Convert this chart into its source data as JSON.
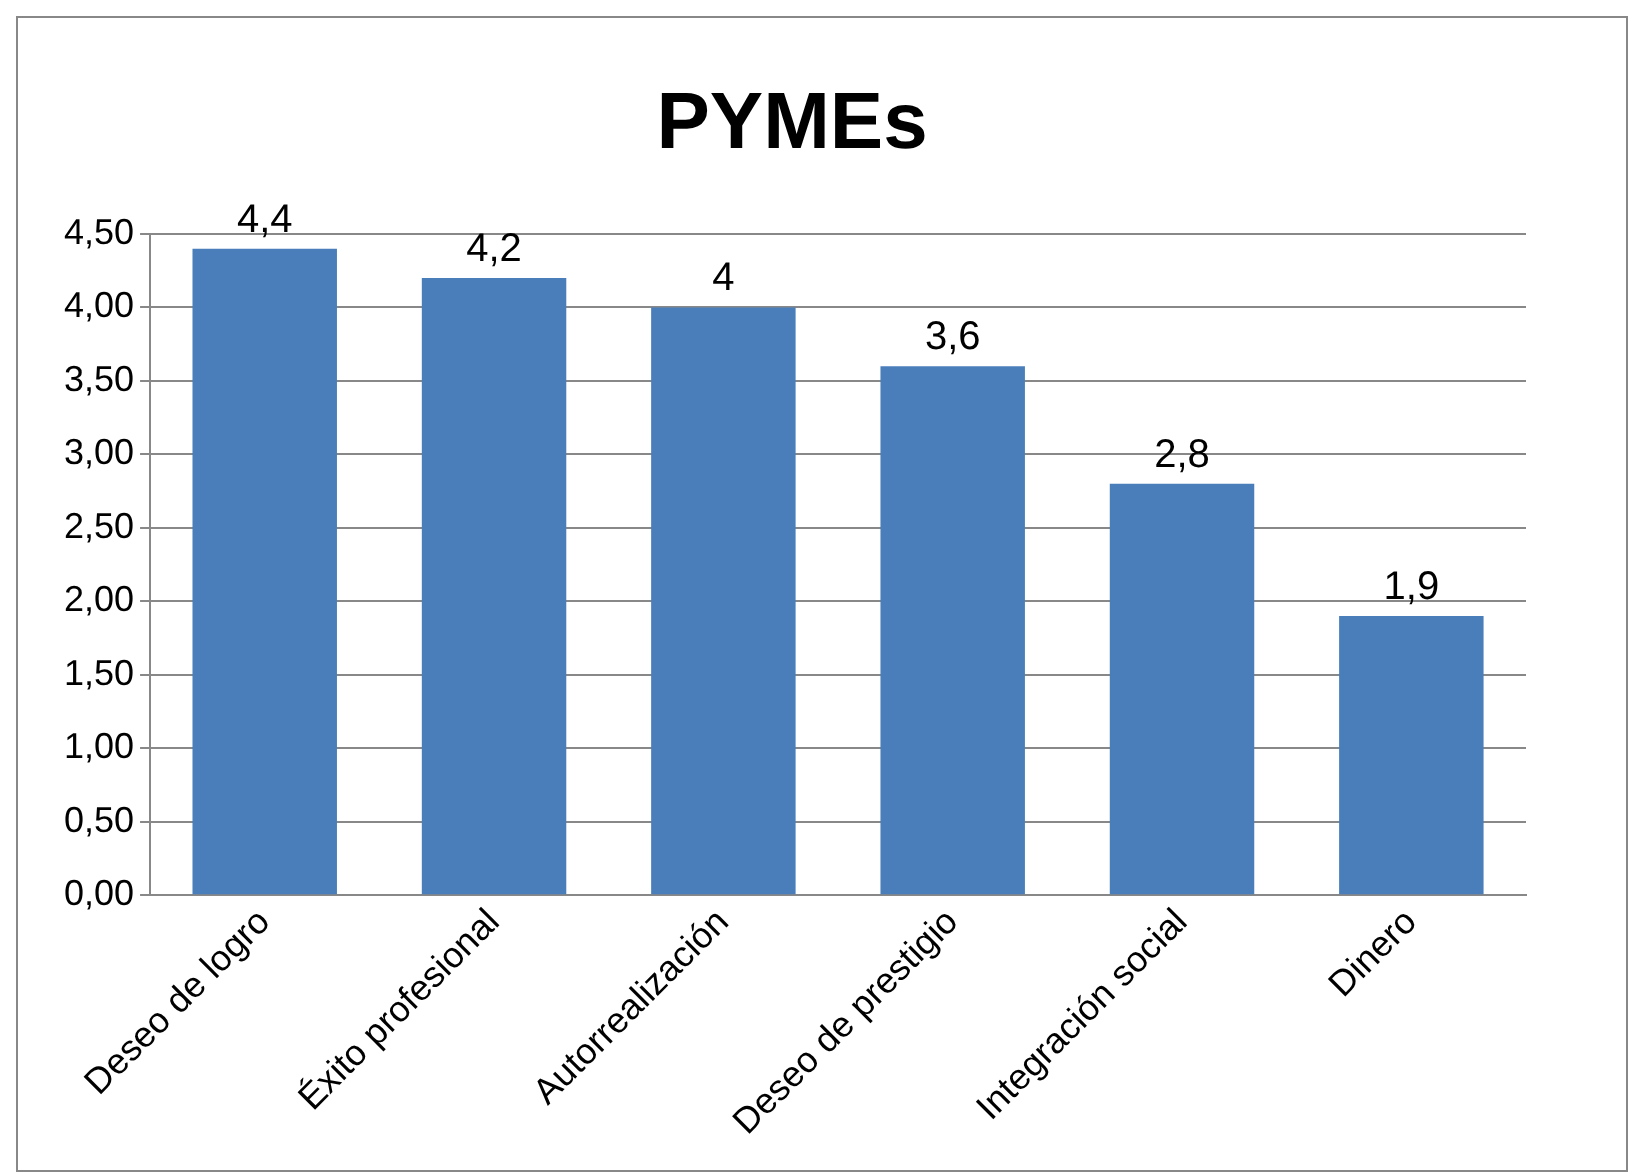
{
  "chart_data": {
    "type": "bar",
    "title": "PYMEs",
    "categories": [
      "Deseo de logro",
      "Éxito profesional",
      "Autorrealización",
      "Deseo de prestigio",
      "Integración social",
      "Dinero"
    ],
    "values": [
      4.4,
      4.2,
      4,
      3.6,
      2.8,
      1.9
    ],
    "value_labels": [
      "4,4",
      "4,2",
      "4",
      "3,6",
      "2,8",
      "1,9"
    ],
    "color": "#4a7ebb",
    "ylim": [
      0,
      4.5
    ],
    "yticks": [
      {
        "value": 0,
        "label": "0,00"
      },
      {
        "value": 0.5,
        "label": "0,50"
      },
      {
        "value": 1,
        "label": "1,00"
      },
      {
        "value": 1.5,
        "label": "1,50"
      },
      {
        "value": 2,
        "label": "2,00"
      },
      {
        "value": 2.5,
        "label": "2,50"
      },
      {
        "value": 3,
        "label": "3,00"
      },
      {
        "value": 3.5,
        "label": "3,50"
      },
      {
        "value": 4,
        "label": "4,00"
      },
      {
        "value": 4.5,
        "label": "4,50"
      }
    ],
    "grid": "y"
  }
}
